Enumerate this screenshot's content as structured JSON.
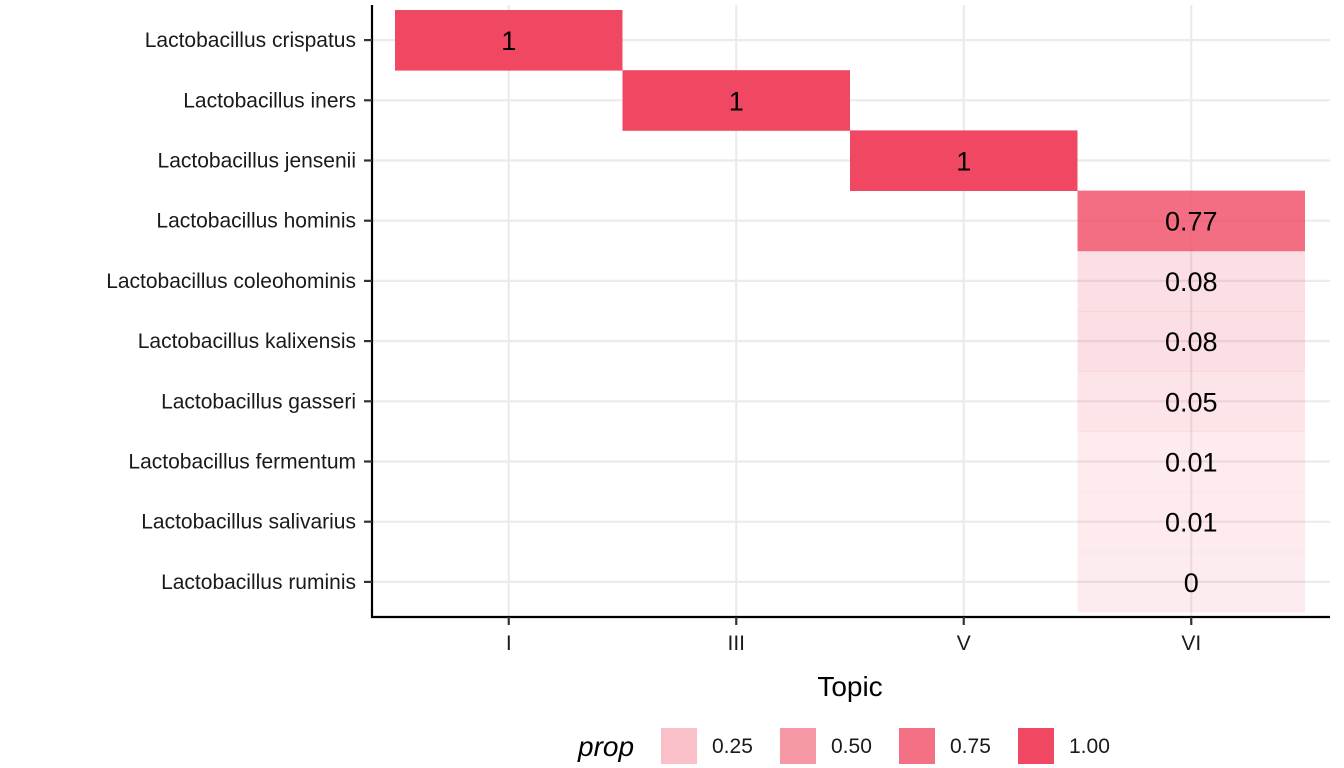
{
  "chart_data": {
    "type": "heatmap",
    "xlabel": "Topic",
    "x_categories": [
      "I",
      "III",
      "V",
      "VI"
    ],
    "y_categories": [
      "Lactobacillus crispatus",
      "Lactobacillus iners",
      "Lactobacillus jensenii",
      "Lactobacillus hominis",
      "Lactobacillus coleohominis",
      "Lactobacillus kalixensis",
      "Lactobacillus gasseri",
      "Lactobacillus fermentum",
      "Lactobacillus salivarius",
      "Lactobacillus ruminis"
    ],
    "cells": [
      {
        "x": "I",
        "y": "Lactobacillus crispatus",
        "value": 1,
        "label": "1"
      },
      {
        "x": "III",
        "y": "Lactobacillus iners",
        "value": 1,
        "label": "1"
      },
      {
        "x": "V",
        "y": "Lactobacillus jensenii",
        "value": 1,
        "label": "1"
      },
      {
        "x": "VI",
        "y": "Lactobacillus hominis",
        "value": 0.77,
        "label": "0.77"
      },
      {
        "x": "VI",
        "y": "Lactobacillus coleohominis",
        "value": 0.08,
        "label": "0.08"
      },
      {
        "x": "VI",
        "y": "Lactobacillus kalixensis",
        "value": 0.08,
        "label": "0.08"
      },
      {
        "x": "VI",
        "y": "Lactobacillus gasseri",
        "value": 0.05,
        "label": "0.05"
      },
      {
        "x": "VI",
        "y": "Lactobacillus fermentum",
        "value": 0.01,
        "label": "0.01"
      },
      {
        "x": "VI",
        "y": "Lactobacillus salivarius",
        "value": 0.01,
        "label": "0.01"
      },
      {
        "x": "VI",
        "y": "Lactobacillus ruminis",
        "value": 0,
        "label": "0"
      }
    ],
    "legend": {
      "title": "prop",
      "position": "bottom",
      "items": [
        {
          "label": "0.25",
          "value": 0.25
        },
        {
          "label": "0.50",
          "value": 0.5
        },
        {
          "label": "0.75",
          "value": 0.75
        },
        {
          "label": "1.00",
          "value": 1.0
        }
      ]
    },
    "fill_color": "#f04863",
    "alpha_range": [
      0.1,
      1.0
    ],
    "grid": true
  }
}
